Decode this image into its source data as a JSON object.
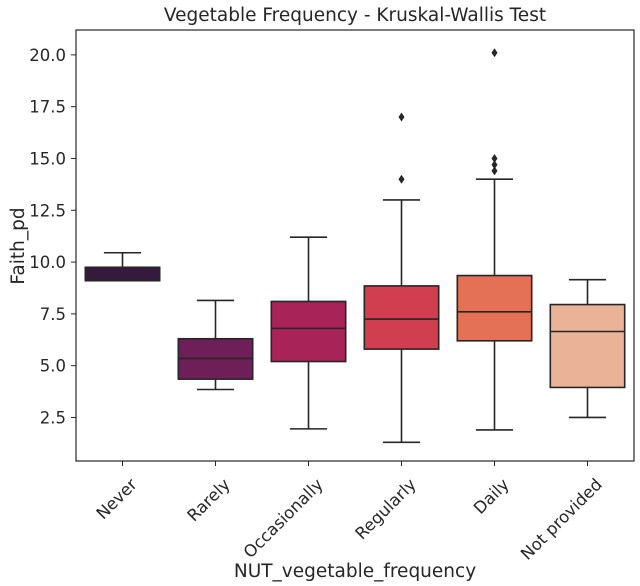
{
  "chart_data": {
    "type": "box",
    "title": "Vegetable Frequency - Kruskal-Wallis Test",
    "xlabel": "NUT_vegetable_frequency",
    "ylabel": "Faith_pd",
    "ylim": [
      0.4,
      21.2
    ],
    "yticks": [
      2.5,
      5.0,
      7.5,
      10.0,
      12.5,
      15.0,
      17.5,
      20.0
    ],
    "ytick_labels": [
      "2.5",
      "5.0",
      "7.5",
      "10.0",
      "12.5",
      "15.0",
      "17.5",
      "20.0"
    ],
    "grid": false,
    "categories": [
      "Never",
      "Rarely",
      "Occasionally",
      "Regularly",
      "Daily",
      "Not provided"
    ],
    "boxes": [
      {
        "category": "Never",
        "whisker_low": 9.1,
        "q1": 9.1,
        "median": 9.15,
        "q3": 9.75,
        "whisker_high": 10.45,
        "outliers": [],
        "color": "#35193e"
      },
      {
        "category": "Rarely",
        "whisker_low": 3.85,
        "q1": 4.35,
        "median": 5.35,
        "q3": 6.3,
        "whisker_high": 8.15,
        "outliers": [],
        "color": "#6e1f57"
      },
      {
        "category": "Occasionally",
        "whisker_low": 1.95,
        "q1": 5.2,
        "median": 6.8,
        "q3": 8.1,
        "whisker_high": 11.2,
        "outliers": [],
        "color": "#a72358"
      },
      {
        "category": "Regularly",
        "whisker_low": 1.3,
        "q1": 5.8,
        "median": 7.25,
        "q3": 8.85,
        "whisker_high": 13.0,
        "outliers": [
          14.0,
          17.0
        ],
        "color": "#d13e4f"
      },
      {
        "category": "Daily",
        "whisker_low": 1.9,
        "q1": 6.2,
        "median": 7.6,
        "q3": 9.35,
        "whisker_high": 14.0,
        "outliers": [
          14.4,
          14.7,
          15.0,
          20.1
        ],
        "color": "#e47055"
      },
      {
        "category": "Not provided",
        "whisker_low": 2.5,
        "q1": 3.95,
        "median": 6.65,
        "q3": 7.95,
        "whisker_high": 9.15,
        "outliers": [],
        "color": "#eab296"
      }
    ]
  }
}
